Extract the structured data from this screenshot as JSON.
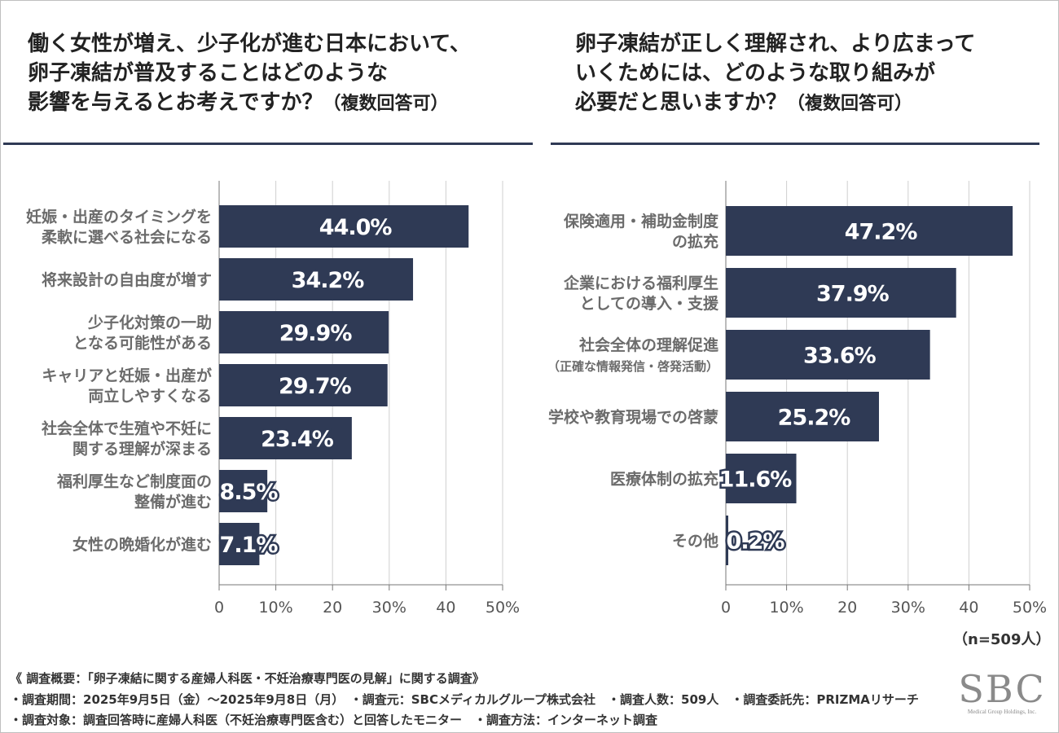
{
  "left": {
    "title": "働く女性が増え、少子化が進む日本において、\n卵子凍結が普及することはどのような\n影響を与えるとお考えですか？",
    "title_tail": "（複数回答可）"
  },
  "right": {
    "title": "卵子凍結が正しく理解され、より広まって\nいくためには、どのような取り組みが\n必要だと思いますか？",
    "title_tail": "（複数回答可）"
  },
  "chart_data": [
    {
      "type": "bar",
      "orientation": "horizontal",
      "categories": [
        "妊娠・出産のタイミングを\n柔軟に選べる社会になる",
        "将来設計の自由度が増す",
        "少子化対策の一助\nとなる可能性がある",
        "キャリアと妊娠・出産が\n両立しやすくなる",
        "社会全体で生殖や不妊に\n関する理解が深まる",
        "福利厚生など制度面の\n整備が進む",
        "女性の晩婚化が進む"
      ],
      "values": [
        44.0,
        34.2,
        29.9,
        29.7,
        23.4,
        8.5,
        7.1
      ],
      "labels": [
        "44.0%",
        "34.2%",
        "29.9%",
        "29.7%",
        "23.4%",
        "8.5%",
        "7.1%"
      ],
      "xlim": [
        0,
        50
      ],
      "ticks": [
        "0",
        "10%",
        "20",
        "30%",
        "40",
        "50%"
      ],
      "grid": true,
      "bar_color": "#2f3a55"
    },
    {
      "type": "bar",
      "orientation": "horizontal",
      "categories": [
        "保険適用・補助金制度\nの拡充",
        "企業における福利厚生\nとしての導入・支援",
        "社会全体の理解促進\n（正確な情報発信・啓発活動）",
        "学校や教育現場での啓蒙",
        "医療体制の拡充",
        "その他"
      ],
      "values": [
        47.2,
        37.9,
        33.6,
        25.2,
        11.6,
        0.2
      ],
      "labels": [
        "47.2%",
        "37.9%",
        "33.6%",
        "25.2%",
        "11.6%",
        "0.2%"
      ],
      "xlim": [
        0,
        50
      ],
      "ticks": [
        "0",
        "10%",
        "20",
        "30%",
        "40",
        "50%"
      ],
      "grid": true,
      "bar_color": "#2f3a55"
    }
  ],
  "sample": "（n=509人）",
  "footnotes": [
    "《 調査概要：「卵子凍結に関する産婦人科医・不妊治療専門医の見解」に関する調査》",
    "・調査期間：2025年9月5日（金）～2025年9月8日（月）　・調査元：SBCメディカルグループ株式会社　・調査人数：509人　・調査委託先：PRIZMAリサーチ",
    "・調査対象：調査回答時に産婦人科医（不妊治療専門医含む）と回答したモニター　・調査方法：インターネット調査"
  ],
  "logo": {
    "mark": "SBC",
    "sub": "Medical Group Holdings, Inc."
  }
}
